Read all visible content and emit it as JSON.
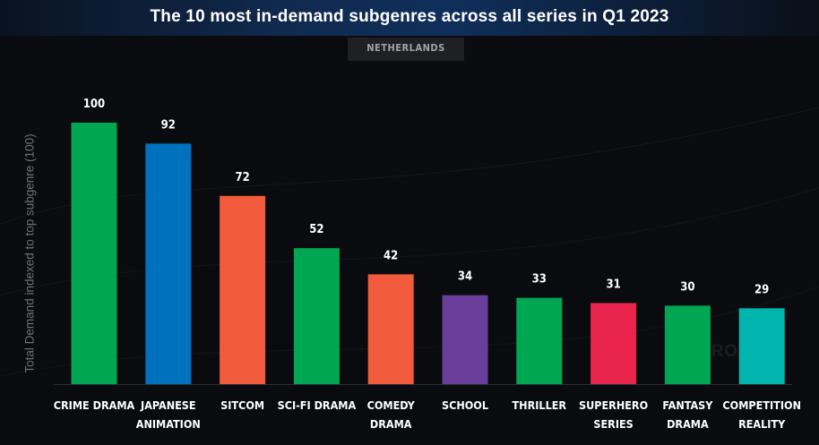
{
  "header": {
    "title": "The 10 most in-demand subgenres across all series in Q1 2023",
    "region": "NETHERLANDS"
  },
  "chart_data": {
    "type": "bar",
    "title": "The 10 most in-demand subgenres across all series in Q1 2023",
    "subtitle": "NETHERLANDS",
    "ylabel": "Total Demand indexed to top subgenre (100)",
    "xlabel": "",
    "ylim": [
      0,
      100
    ],
    "grid": false,
    "categories": [
      [
        "CRIME DRAMA"
      ],
      [
        "JAPANESE",
        "ANIMATION"
      ],
      [
        "SITCOM"
      ],
      [
        "SCI-FI DRAMA"
      ],
      [
        "COMEDY",
        "DRAMA"
      ],
      [
        "SCHOOL"
      ],
      [
        "THRILLER"
      ],
      [
        "SUPERHERO",
        "SERIES"
      ],
      [
        "FANTASY",
        "DRAMA"
      ],
      [
        "COMPETITION",
        "REALITY"
      ]
    ],
    "values": [
      100,
      92,
      72,
      52,
      42,
      34,
      33,
      31,
      30,
      29
    ],
    "colors": [
      "#00a651",
      "#0071bc",
      "#f15a3a",
      "#00a651",
      "#f15a3a",
      "#6a3f9b",
      "#00a651",
      "#e8244c",
      "#00a651",
      "#00b5ad"
    ]
  },
  "watermark": {
    "text": "PARROT"
  }
}
